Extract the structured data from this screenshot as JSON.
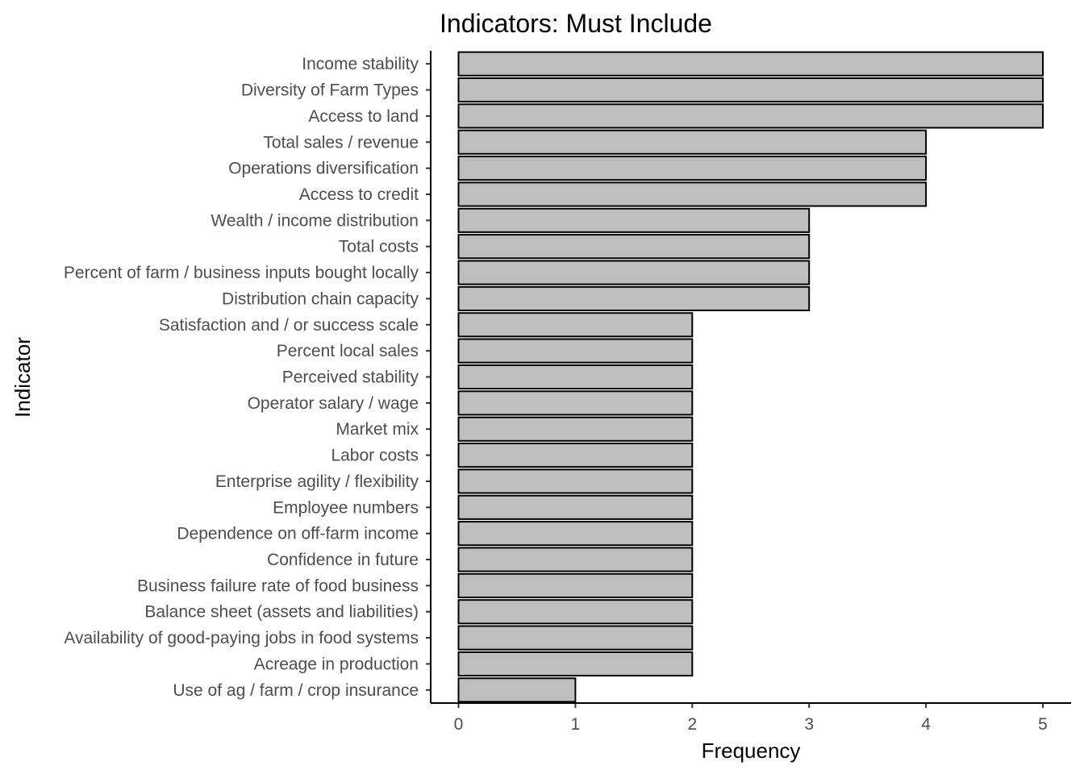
{
  "chart_data": {
    "type": "bar",
    "orientation": "horizontal",
    "title": "Indicators: Must Include",
    "xlabel": "Frequency",
    "ylabel": "Indicator",
    "categories": [
      "Income stability",
      "Diversity of Farm Types",
      "Access to land",
      "Total sales / revenue",
      "Operations diversification",
      "Access to credit",
      "Wealth / income distribution",
      "Total costs",
      "Percent of farm / business inputs bought locally",
      "Distribution chain capacity",
      "Satisfaction and / or success scale",
      "Percent local sales",
      "Perceived stability",
      "Operator salary / wage",
      "Market mix",
      "Labor costs",
      "Enterprise agility / flexibility",
      "Employee numbers",
      "Dependence on off-farm income",
      "Confidence in future",
      "Business failure rate of food business",
      "Balance sheet (assets and liabilities)",
      "Availability of good-paying jobs in food systems",
      "Acreage in production",
      "Use of ag / farm / crop insurance"
    ],
    "values": [
      5,
      5,
      5,
      4,
      4,
      4,
      3,
      3,
      3,
      3,
      2,
      2,
      2,
      2,
      2,
      2,
      2,
      2,
      2,
      2,
      2,
      2,
      2,
      2,
      1
    ],
    "xlim": [
      0,
      5
    ],
    "xticks": [
      0,
      1,
      2,
      3,
      4,
      5
    ],
    "grid": false,
    "legend": "none",
    "bar_fill": "#bebebe",
    "bar_stroke": "#000000"
  }
}
